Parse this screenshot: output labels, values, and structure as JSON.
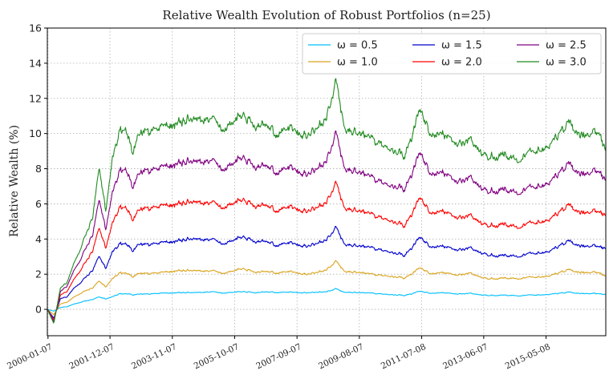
{
  "chart_data": {
    "type": "line",
    "title": "Relative Wealth Evolution of Robust Portfolios (n=25)",
    "xlabel": "",
    "ylabel": "Relative Wealth (%)",
    "ylim": [
      -1.5,
      16
    ],
    "yticks": [
      0,
      2,
      4,
      6,
      8,
      10,
      12,
      14,
      16
    ],
    "grid": true,
    "legend_position": "top-right",
    "x_tick_labels": [
      "2000-01-07",
      "2001-12-07",
      "2003-11-07",
      "2005-10-07",
      "2007-09-07",
      "2009-08-07",
      "2011-07-08",
      "2013-06-07",
      "2015-05-08"
    ],
    "x_tick_years": [
      2000.02,
      2001.93,
      2003.85,
      2005.77,
      2007.69,
      2009.61,
      2011.53,
      2013.44,
      2015.36
    ],
    "xlim": [
      2000.0,
      2017.2
    ],
    "x": [
      2000.0,
      2000.2,
      2000.4,
      2000.6,
      2000.8,
      2001.0,
      2001.2,
      2001.4,
      2001.6,
      2001.8,
      2002.0,
      2002.2,
      2002.4,
      2002.6,
      2002.8,
      2003.0,
      2003.5,
      2004.0,
      2004.5,
      2005.0,
      2005.5,
      2006.0,
      2006.5,
      2007.0,
      2007.5,
      2008.0,
      2008.5,
      2008.9,
      2009.2,
      2009.5,
      2010.0,
      2010.5,
      2011.0,
      2011.5,
      2011.8,
      2012.2,
      2012.6,
      2013.0,
      2013.5,
      2014.0,
      2014.5,
      2015.0,
      2015.5,
      2016.0,
      2016.5,
      2017.0,
      2017.2
    ],
    "series": [
      {
        "name": "ω = 0.5",
        "color": "#00bfff",
        "values": [
          0.0,
          -0.1,
          0.1,
          0.15,
          0.3,
          0.4,
          0.5,
          0.55,
          0.7,
          0.55,
          0.7,
          0.85,
          0.9,
          0.85,
          0.9,
          0.9,
          0.92,
          0.95,
          0.95,
          1.0,
          0.95,
          1.0,
          1.0,
          0.98,
          0.95,
          0.95,
          1.0,
          1.15,
          0.95,
          0.95,
          0.92,
          0.85,
          0.8,
          1.0,
          0.9,
          0.95,
          0.85,
          0.88,
          0.82,
          0.82,
          0.8,
          0.85,
          0.85,
          0.95,
          0.9,
          0.9,
          0.85
        ]
      },
      {
        "name": "ω = 1.0",
        "color": "#daa520",
        "values": [
          0.0,
          -0.3,
          0.3,
          0.4,
          0.7,
          0.9,
          1.1,
          1.2,
          1.6,
          1.2,
          1.7,
          2.0,
          2.1,
          1.9,
          2.1,
          2.1,
          2.1,
          2.2,
          2.2,
          2.2,
          2.1,
          2.3,
          2.2,
          2.1,
          2.1,
          2.0,
          2.2,
          2.7,
          2.1,
          2.1,
          2.0,
          1.9,
          1.8,
          2.3,
          2.0,
          2.1,
          1.9,
          2.0,
          1.8,
          1.8,
          1.8,
          1.9,
          1.9,
          2.2,
          2.1,
          2.1,
          1.9
        ]
      },
      {
        "name": "ω = 1.5",
        "color": "#0000cd",
        "values": [
          0.0,
          -0.5,
          0.6,
          0.7,
          1.2,
          1.5,
          1.9,
          2.2,
          3.0,
          2.2,
          3.2,
          3.6,
          3.8,
          3.4,
          3.8,
          3.8,
          3.8,
          3.9,
          4.0,
          4.0,
          3.8,
          4.1,
          4.0,
          3.7,
          3.7,
          3.6,
          3.9,
          4.6,
          3.6,
          3.6,
          3.5,
          3.3,
          3.1,
          4.0,
          3.5,
          3.6,
          3.3,
          3.4,
          3.2,
          3.1,
          3.1,
          3.3,
          3.3,
          3.8,
          3.6,
          3.6,
          3.5
        ]
      },
      {
        "name": "ω = 2.0",
        "color": "#ff0000",
        "values": [
          0.0,
          -0.6,
          0.8,
          1.0,
          1.7,
          2.2,
          2.8,
          3.3,
          4.6,
          3.3,
          4.8,
          5.6,
          5.9,
          5.2,
          5.8,
          5.9,
          5.9,
          6.0,
          6.1,
          6.1,
          5.9,
          6.2,
          6.1,
          5.7,
          5.7,
          5.6,
          6.0,
          7.1,
          5.6,
          5.6,
          5.4,
          5.1,
          4.8,
          6.2,
          5.4,
          5.6,
          5.1,
          5.2,
          4.9,
          4.9,
          4.8,
          5.1,
          5.1,
          5.8,
          5.5,
          5.6,
          5.4
        ]
      },
      {
        "name": "ω = 2.5",
        "color": "#800080",
        "values": [
          0.0,
          -0.7,
          1.0,
          1.3,
          2.2,
          2.8,
          3.6,
          4.2,
          6.2,
          4.3,
          6.5,
          7.6,
          8.1,
          7.1,
          7.9,
          8.1,
          8.1,
          8.3,
          8.4,
          8.5,
          8.1,
          8.6,
          8.4,
          7.9,
          7.9,
          7.7,
          8.3,
          9.9,
          7.8,
          7.8,
          7.5,
          7.1,
          6.9,
          8.7,
          7.6,
          7.8,
          7.1,
          7.3,
          6.9,
          6.9,
          6.8,
          7.2,
          7.2,
          8.1,
          7.7,
          7.9,
          7.4
        ]
      },
      {
        "name": "ω = 3.0",
        "color": "#228b22",
        "values": [
          0.0,
          -0.8,
          1.2,
          1.5,
          2.6,
          3.4,
          4.4,
          5.2,
          8.0,
          5.3,
          8.4,
          9.8,
          10.4,
          9.1,
          10.2,
          10.4,
          10.4,
          10.6,
          10.8,
          10.9,
          10.4,
          11.0,
          10.8,
          10.1,
          10.1,
          9.9,
          10.7,
          12.8,
          10.0,
          10.0,
          9.7,
          9.2,
          8.8,
          11.1,
          9.8,
          10.0,
          9.2,
          9.4,
          8.9,
          8.9,
          8.7,
          9.3,
          9.3,
          10.4,
          9.9,
          10.1,
          9.1
        ]
      }
    ]
  }
}
